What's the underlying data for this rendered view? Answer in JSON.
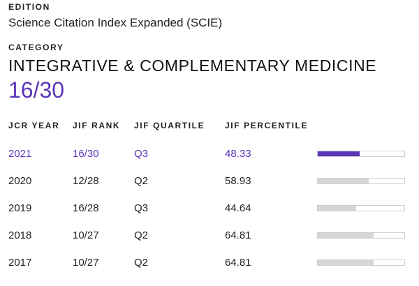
{
  "edition": {
    "label": "EDITION",
    "value": "Science Citation Index Expanded (SCIE)"
  },
  "category": {
    "label": "CATEGORY",
    "value": "INTEGRATIVE & COMPLEMENTARY MEDICINE",
    "rank": "16/30"
  },
  "table": {
    "headers": [
      "JCR YEAR",
      "JIF RANK",
      "JIF QUARTILE",
      "JIF PERCENTILE"
    ],
    "rows": [
      {
        "year": "2021",
        "rank": "16/30",
        "quartile": "Q3",
        "percentile": "48.33",
        "percentile_value": 48.33,
        "highlight": true
      },
      {
        "year": "2020",
        "rank": "12/28",
        "quartile": "Q2",
        "percentile": "58.93",
        "percentile_value": 58.93,
        "highlight": false
      },
      {
        "year": "2019",
        "rank": "16/28",
        "quartile": "Q3",
        "percentile": "44.64",
        "percentile_value": 44.64,
        "highlight": false
      },
      {
        "year": "2018",
        "rank": "10/27",
        "quartile": "Q2",
        "percentile": "64.81",
        "percentile_value": 64.81,
        "highlight": false
      },
      {
        "year": "2017",
        "rank": "10/27",
        "quartile": "Q2",
        "percentile": "64.81",
        "percentile_value": 64.81,
        "highlight": false
      }
    ]
  },
  "colors": {
    "accent": "#5b35b8",
    "bar_fill": "#d6d6d6",
    "bar_track": "#ffffff",
    "text": "#222222"
  }
}
